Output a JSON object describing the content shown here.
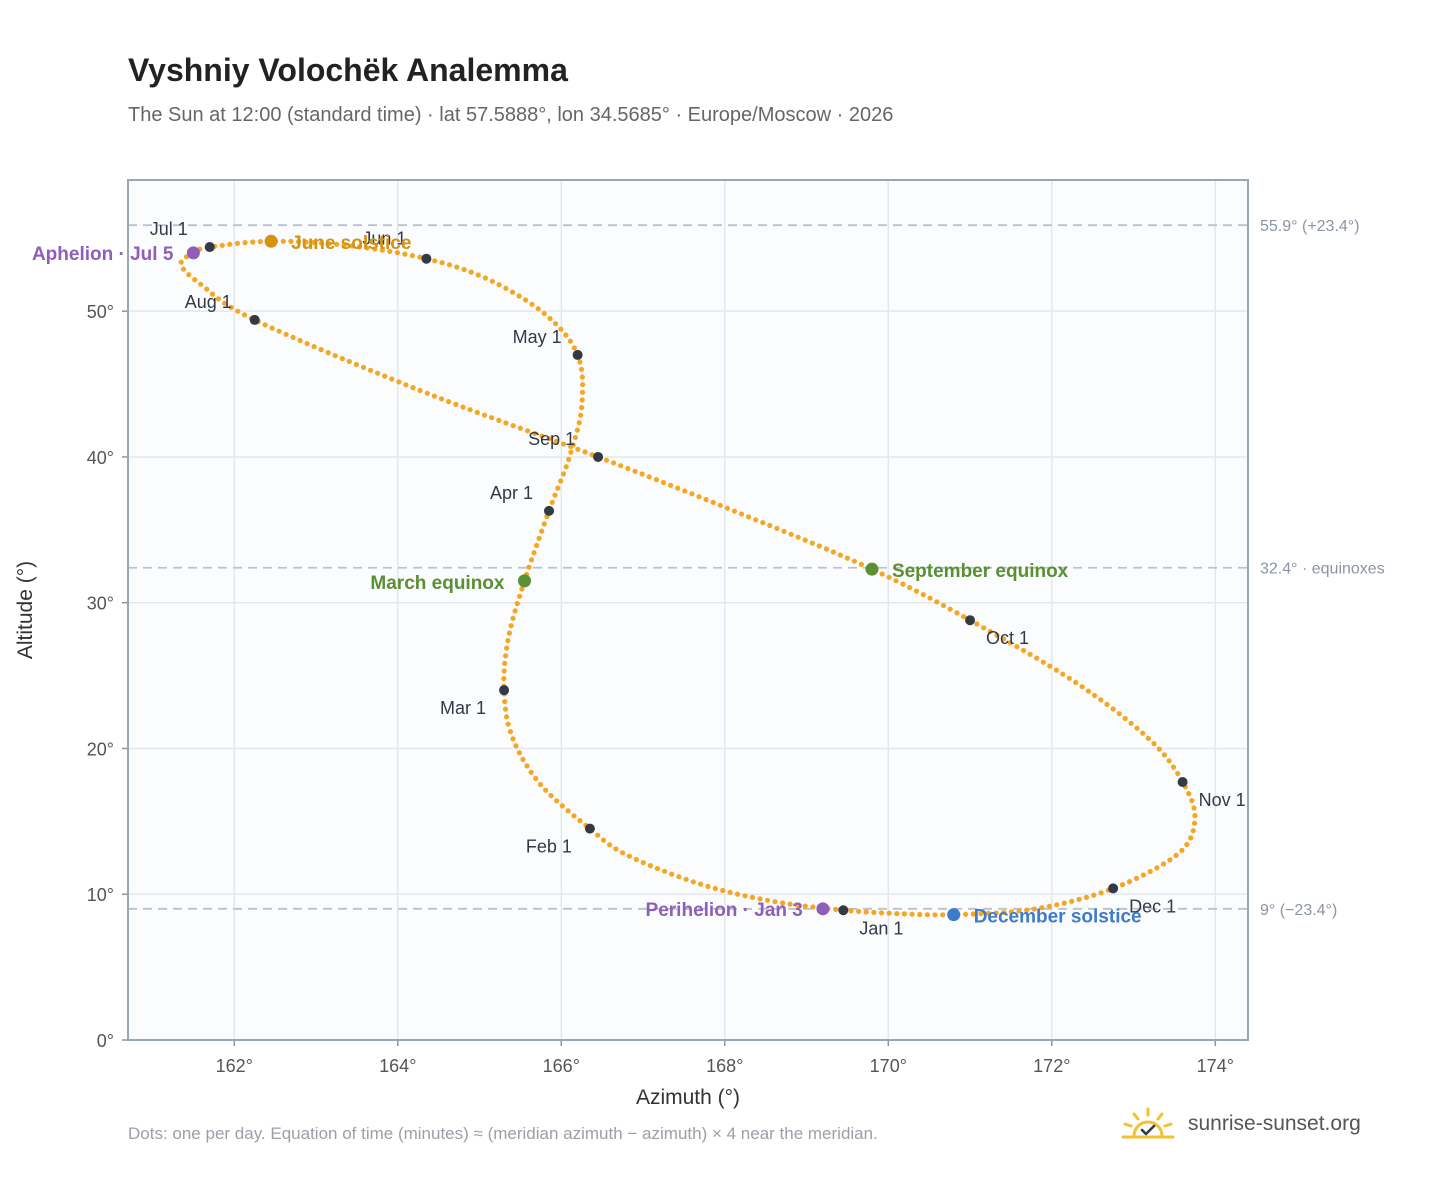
{
  "title": "Vyshniy Volochëk Analemma",
  "subtitle": "The Sun at 12:00 (standard time) · lat 57.5888°, lon 34.5685° · Europe/Moscow · 2026",
  "footnote": "Dots: one per day. Equation of time (minutes) ≈ (meridian azimuth − azimuth) × 4 near the meridian.",
  "brand": {
    "name": "sunrise-sunset.org",
    "logo_icon": "sun-logo-icon"
  },
  "colors": {
    "curve": "#f5a623",
    "month_marker": "#333a45",
    "aphelion": "#8e5fb8",
    "perihelion": "#8e5fb8",
    "june_solstice": "#d4920f",
    "december_solstice": "#3d7cc9",
    "equinox": "#5a8f32",
    "reference_line": "#b9c2cf",
    "plot_background": "#fafcfe"
  },
  "chart_data": {
    "type": "scatter",
    "xlabel": "Azimuth (°)",
    "ylabel": "Altitude (°)",
    "xlim": [
      160.7,
      174.4
    ],
    "ylim": [
      0,
      59
    ],
    "x_ticks": [
      162,
      164,
      166,
      168,
      170,
      172,
      174
    ],
    "y_ticks": [
      0,
      10,
      20,
      30,
      40,
      50
    ],
    "x_tick_labels": [
      "162°",
      "164°",
      "166°",
      "168°",
      "170°",
      "172°",
      "174°"
    ],
    "y_tick_labels": [
      "0°",
      "10°",
      "20°",
      "30°",
      "40°",
      "50°"
    ],
    "grid": true,
    "reference_lines": [
      {
        "altitude": 55.9,
        "label": "55.9° (+23.4°)"
      },
      {
        "altitude": 32.4,
        "label": "32.4° · equinoxes"
      },
      {
        "altitude": 9.0,
        "label": "9° (−23.4°)"
      }
    ],
    "path_points": [
      {
        "az": 169.45,
        "alt": 8.9
      },
      {
        "az": 168.6,
        "alt": 9.5
      },
      {
        "az": 167.7,
        "alt": 10.7
      },
      {
        "az": 166.8,
        "alt": 12.7
      },
      {
        "az": 166.35,
        "alt": 14.5
      },
      {
        "az": 165.75,
        "alt": 17.5
      },
      {
        "az": 165.4,
        "alt": 20.8
      },
      {
        "az": 165.3,
        "alt": 24.0
      },
      {
        "az": 165.35,
        "alt": 27.5
      },
      {
        "az": 165.55,
        "alt": 31.5
      },
      {
        "az": 165.85,
        "alt": 36.3
      },
      {
        "az": 166.1,
        "alt": 40.0
      },
      {
        "az": 166.25,
        "alt": 43.5
      },
      {
        "az": 166.2,
        "alt": 47.0
      },
      {
        "az": 165.8,
        "alt": 49.8
      },
      {
        "az": 165.1,
        "alt": 52.2
      },
      {
        "az": 164.35,
        "alt": 53.6
      },
      {
        "az": 163.4,
        "alt": 54.5
      },
      {
        "az": 162.45,
        "alt": 54.8
      },
      {
        "az": 161.7,
        "alt": 54.4
      },
      {
        "az": 161.5,
        "alt": 54.0
      },
      {
        "az": 161.35,
        "alt": 53.2
      },
      {
        "az": 161.6,
        "alt": 51.8
      },
      {
        "az": 162.25,
        "alt": 49.4
      },
      {
        "az": 164.3,
        "alt": 44.5
      },
      {
        "az": 166.45,
        "alt": 40.0
      },
      {
        "az": 168.2,
        "alt": 36.1
      },
      {
        "az": 169.8,
        "alt": 32.3
      },
      {
        "az": 171.0,
        "alt": 28.8
      },
      {
        "az": 172.3,
        "alt": 24.5
      },
      {
        "az": 173.2,
        "alt": 20.6
      },
      {
        "az": 173.6,
        "alt": 17.7
      },
      {
        "az": 173.75,
        "alt": 15.2
      },
      {
        "az": 173.55,
        "alt": 12.8
      },
      {
        "az": 172.75,
        "alt": 10.4
      },
      {
        "az": 171.8,
        "alt": 9.0
      },
      {
        "az": 170.8,
        "alt": 8.6
      },
      {
        "az": 170.0,
        "alt": 8.7
      },
      {
        "az": 169.45,
        "alt": 8.9
      }
    ],
    "month_markers": [
      {
        "label": "Jan 1",
        "az": 169.45,
        "alt": 8.9
      },
      {
        "label": "Feb 1",
        "az": 166.35,
        "alt": 14.5
      },
      {
        "label": "Mar 1",
        "az": 165.3,
        "alt": 24.0
      },
      {
        "label": "Apr 1",
        "az": 165.85,
        "alt": 36.3
      },
      {
        "label": "May 1",
        "az": 166.2,
        "alt": 47.0
      },
      {
        "label": "Jun 1",
        "az": 164.35,
        "alt": 53.6
      },
      {
        "label": "Jul 1",
        "az": 161.7,
        "alt": 54.4
      },
      {
        "label": "Aug 1",
        "az": 162.25,
        "alt": 49.4
      },
      {
        "label": "Sep 1",
        "az": 166.45,
        "alt": 40.0
      },
      {
        "label": "Oct 1",
        "az": 171.0,
        "alt": 28.8
      },
      {
        "label": "Nov 1",
        "az": 173.6,
        "alt": 17.7
      },
      {
        "label": "Dec 1",
        "az": 172.75,
        "alt": 10.4
      }
    ],
    "events": [
      {
        "key": "aphelion",
        "label": "Aphelion · Jul 5",
        "az": 161.5,
        "alt": 54.0
      },
      {
        "key": "perihelion",
        "label": "Perihelion · Jan 3",
        "az": 169.2,
        "alt": 9.0
      },
      {
        "key": "june_solstice",
        "label": "June solstice",
        "az": 162.45,
        "alt": 54.8
      },
      {
        "key": "december_solstice",
        "label": "December solstice",
        "az": 170.8,
        "alt": 8.6
      },
      {
        "key": "march_equinox",
        "label": "March equinox",
        "az": 165.55,
        "alt": 31.5
      },
      {
        "key": "september_equinox",
        "label": "September equinox",
        "az": 169.8,
        "alt": 32.3
      }
    ]
  }
}
